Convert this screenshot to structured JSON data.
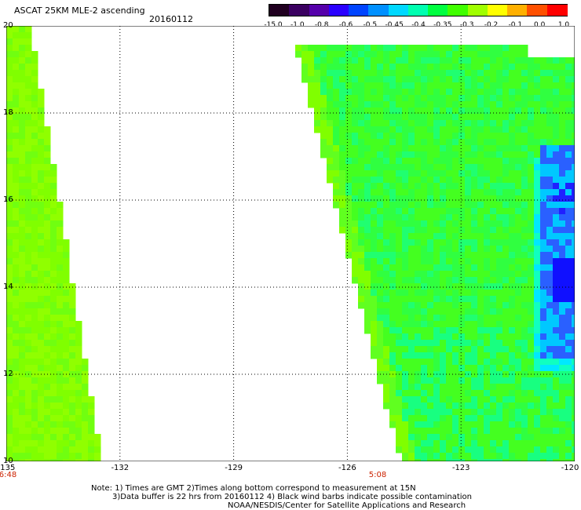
{
  "header": {
    "title": "ASCAT 25KM MLE-2 ascending",
    "date": "20160112"
  },
  "colorbar": {
    "labels": [
      "-15.0",
      "-1.0",
      "-0.8",
      "-0.6",
      "-0.5",
      "-0.45",
      "-0.4",
      "-0.35",
      "-0.3",
      "-0.2",
      "-0.1",
      "0.0",
      "1.0"
    ],
    "colors": [
      "#200020",
      "#3a0060",
      "#5500aa",
      "#2a00ff",
      "#0044ff",
      "#0090ff",
      "#00d8ff",
      "#00ffb0",
      "#00ff40",
      "#40ff00",
      "#a0ff00",
      "#ffff00",
      "#ffb000",
      "#ff5000",
      "#ff0000"
    ]
  },
  "map": {
    "lon_labels": [
      "-135",
      "-132",
      "-129",
      "-126",
      "-123",
      "-120"
    ],
    "lat_labels": [
      "20",
      "18",
      "16",
      "14",
      "12",
      "10"
    ],
    "time_labels": [
      "6:48",
      "5:08"
    ]
  },
  "notes": {
    "line1": "Note: 1) Times are GMT 2)Times along bottom correspond to measurement at 15N",
    "line2": "3)Data buffer is 22 hrs from 20160112 4) Black wind barbs indicate possible contamination",
    "line3": "NOAA/NESDIS/Center for Satellite Applications and Research"
  }
}
